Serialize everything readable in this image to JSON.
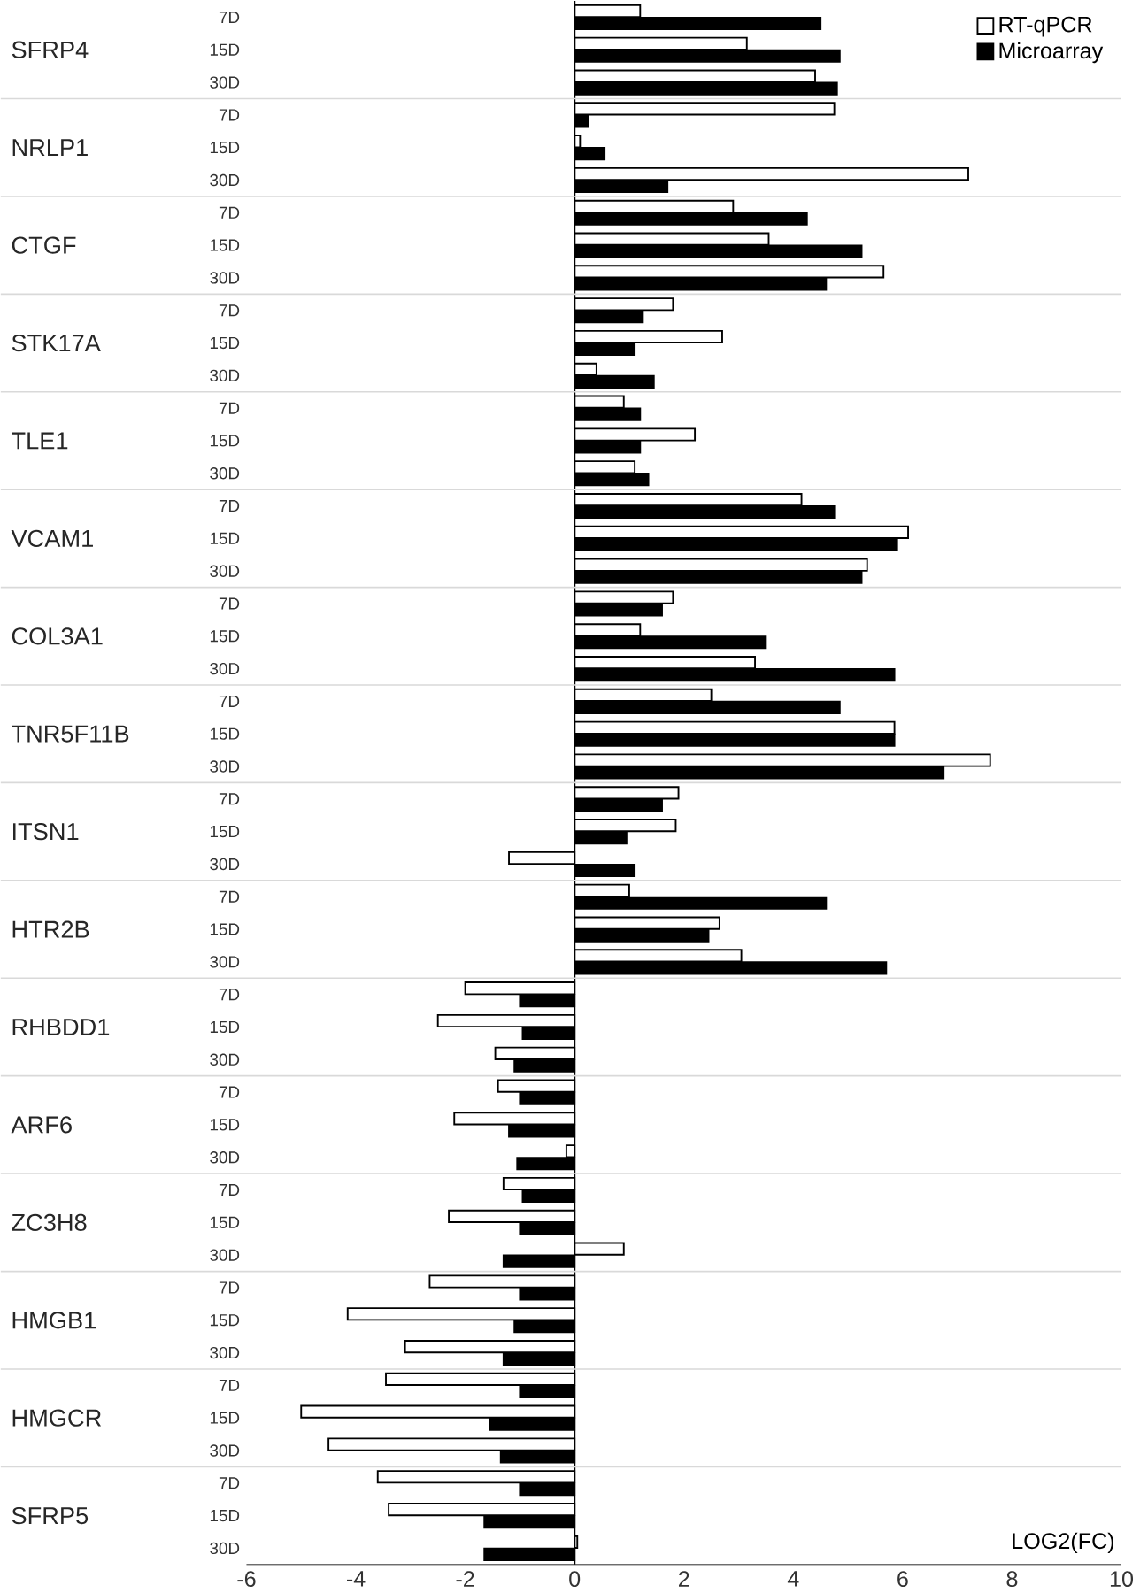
{
  "chart_data": {
    "type": "bar",
    "orientation": "horizontal",
    "xlabel": "LOG2(FC)",
    "categories": [
      "7D",
      "15D",
      "30D",
      "7D",
      "15D",
      "30D",
      "7D",
      "15D",
      "30D",
      "7D",
      "15D",
      "30D",
      "7D",
      "15D",
      "30D",
      "7D",
      "15D",
      "30D",
      "7D",
      "15D",
      "30D",
      "7D",
      "15D",
      "30D",
      "7D",
      "15D",
      "30D",
      "7D",
      "15D",
      "30D",
      "7D",
      "15D",
      "30D",
      "7D",
      "15D",
      "30D",
      "7D",
      "15D",
      "30D",
      "7D",
      "15D",
      "30D",
      "7D",
      "15D",
      "30D",
      "7D",
      "15D",
      "30D"
    ],
    "series": [
      {
        "name": "RT-qPCR",
        "color": "#ffffff",
        "values": [
          1.2,
          3.15,
          4.4,
          4.75,
          0.1,
          7.2,
          2.9,
          3.55,
          5.65,
          1.8,
          2.7,
          0.4,
          0.9,
          2.2,
          1.1,
          4.15,
          6.1,
          5.35,
          1.8,
          1.2,
          3.3,
          2.5,
          5.85,
          7.6,
          1.9,
          1.85,
          -1.2,
          1.0,
          2.65,
          3.05,
          -2.0,
          -2.5,
          -1.45,
          -1.4,
          -2.2,
          -0.15,
          -1.3,
          -2.3,
          0.9,
          -2.65,
          -4.15,
          -3.1,
          -3.45,
          -5.0,
          -4.5,
          -3.6,
          -3.4,
          0.05
        ]
      },
      {
        "name": "Microarray",
        "color": "#000000",
        "values": [
          4.5,
          4.85,
          4.8,
          0.25,
          0.55,
          1.7,
          4.25,
          5.25,
          4.6,
          1.25,
          1.1,
          1.45,
          1.2,
          1.2,
          1.35,
          4.75,
          5.9,
          5.25,
          1.6,
          3.5,
          5.85,
          4.85,
          5.85,
          6.75,
          1.6,
          0.95,
          1.1,
          4.6,
          2.45,
          5.7,
          -1.0,
          -0.95,
          -1.1,
          -1.0,
          -1.2,
          -1.05,
          -0.95,
          -1.0,
          -1.3,
          -1.0,
          -1.1,
          -1.3,
          -1.0,
          -1.55,
          -1.35,
          -1.0,
          -1.65,
          -1.65
        ]
      }
    ],
    "annotations": [
      "SFRP4",
      "NRLP1",
      "CTGF",
      "STK17A",
      "TLE1",
      "VCAM1",
      "COL3A1",
      "TNR5F11B",
      "ITSN1",
      "HTR2B",
      "RHBDD1",
      "ARF6",
      "ZC3H8",
      "HMGB1",
      "HMGCR",
      "SFRP5"
    ],
    "xlim": [
      -6,
      10
    ],
    "xticks": [
      -6,
      -4,
      -2,
      0,
      2,
      4,
      6,
      8,
      10
    ],
    "legend": "top right"
  }
}
